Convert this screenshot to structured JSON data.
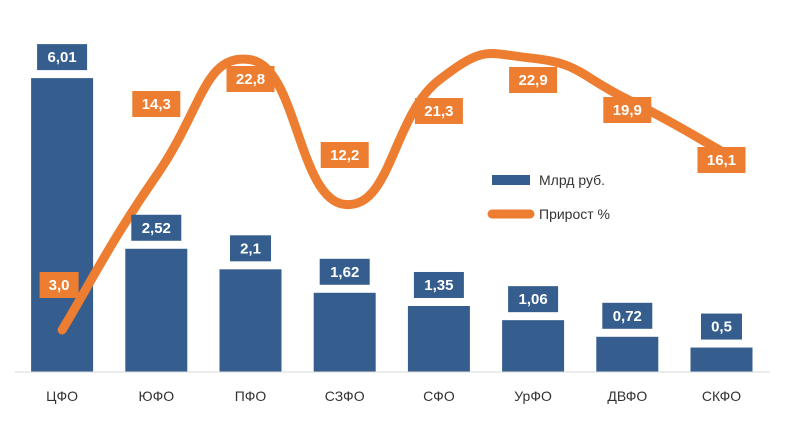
{
  "chart_data": {
    "type": "bar",
    "categories": [
      "ЦФО",
      "ЮФО",
      "ПФО",
      "СЗФО",
      "СФО",
      "УрФО",
      "ДВФО",
      "СКФО"
    ],
    "series": [
      {
        "name": "Млрд руб.",
        "type": "bar",
        "axis": "left",
        "values": [
          6.01,
          2.52,
          2.1,
          1.62,
          1.35,
          1.06,
          0.72,
          0.5
        ],
        "labels": [
          "6,01",
          "2,52",
          "2,1",
          "1,62",
          "1,35",
          "1,06",
          "0,72",
          "0,5"
        ],
        "color": "#355E8E"
      },
      {
        "name": "Прирост %",
        "type": "line",
        "smooth": true,
        "axis": "right",
        "values": [
          3.0,
          14.3,
          22.8,
          12.2,
          21.3,
          22.9,
          19.9,
          16.1
        ],
        "labels": [
          "3,0",
          "14,3",
          "22,8",
          "12,2",
          "21,3",
          "22,9",
          "19,9",
          "16,1"
        ],
        "color": "#ED7D31"
      }
    ],
    "ylim_left": [
      0,
      6.5
    ],
    "ylim_right": [
      0,
      26
    ],
    "grid": false,
    "legend": "right-middle"
  }
}
